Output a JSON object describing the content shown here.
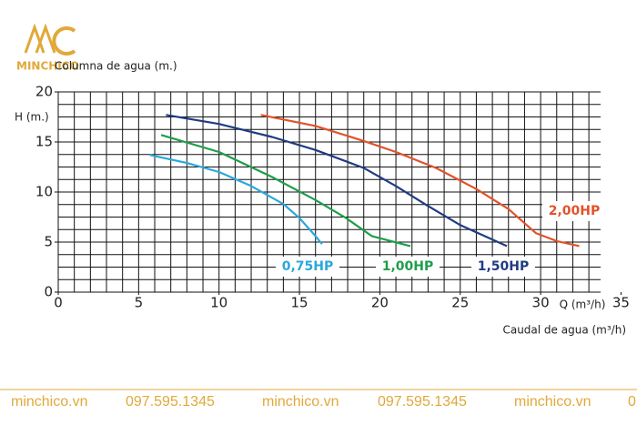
{
  "logo": "MINCHICO",
  "footer": [
    "minchico.vn",
    "097.595.1345",
    "minchico.vn",
    "097.595.1345",
    "minchico.vn",
    "0"
  ],
  "chart_data": {
    "type": "line",
    "title": "Columna de agua (m.)",
    "y_label": "H (m.)",
    "x_label": "Caudal de agua (m³/h)",
    "x_unit_label": "Q (m³/h)",
    "xlim": [
      0,
      35
    ],
    "xticks": [
      0,
      5,
      10,
      15,
      20,
      25,
      30,
      35
    ],
    "ylim": [
      0,
      20
    ],
    "yticks": [
      0,
      5,
      10,
      15,
      20
    ],
    "grid": true,
    "grid_step_x": 1,
    "grid_step_y": 1.25,
    "series": [
      {
        "name": "0,75HP",
        "color": "#29a8dc",
        "x": [
          5.7,
          8,
          10,
          12,
          14,
          15,
          16,
          16.4
        ],
        "values": [
          13.7,
          12.9,
          12,
          10.6,
          8.8,
          7.4,
          5.6,
          4.8
        ]
      },
      {
        "name": "1,00HP",
        "color": "#1e9e4a",
        "x": [
          6.4,
          10,
          13.3,
          16,
          17.9,
          19.5,
          21.9
        ],
        "values": [
          15.7,
          14,
          11.5,
          9.2,
          7.4,
          5.6,
          4.6
        ]
      },
      {
        "name": "1,50HP",
        "color": "#1f3c82",
        "x": [
          6.7,
          10,
          13.3,
          16,
          19,
          21,
          22.9,
          25,
          27.9
        ],
        "values": [
          17.7,
          16.8,
          15.5,
          14.2,
          12.4,
          10.6,
          8.7,
          6.7,
          4.6
        ]
      },
      {
        "name": "2,00HP",
        "color": "#e2522a",
        "x": [
          12.6,
          16,
          19,
          21,
          23.5,
          26,
          28,
          29.7,
          31,
          32.4
        ],
        "values": [
          17.7,
          16.6,
          15.1,
          14,
          12.4,
          10.3,
          8.3,
          5.9,
          5.1,
          4.6
        ]
      }
    ]
  }
}
